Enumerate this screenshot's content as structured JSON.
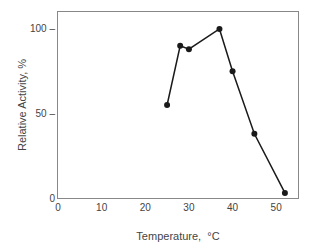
{
  "chart_data": {
    "type": "line",
    "x": [
      25,
      28,
      30,
      37,
      40,
      45,
      52
    ],
    "values": [
      55,
      90,
      88,
      100,
      75,
      38,
      3
    ],
    "xlabel": "Temperature,  °C",
    "ylabel": "Relative Activity, %",
    "xlim": [
      0,
      55
    ],
    "ylim": [
      0,
      110
    ],
    "xticks": [
      0,
      10,
      20,
      30,
      40,
      50
    ],
    "yticks": [
      0,
      {
        "value": 50,
        "label": "50 –"
      },
      {
        "value": 100,
        "label": "100 –"
      }
    ],
    "color": "#1a1a1a",
    "marker": "circle",
    "grid": false
  }
}
